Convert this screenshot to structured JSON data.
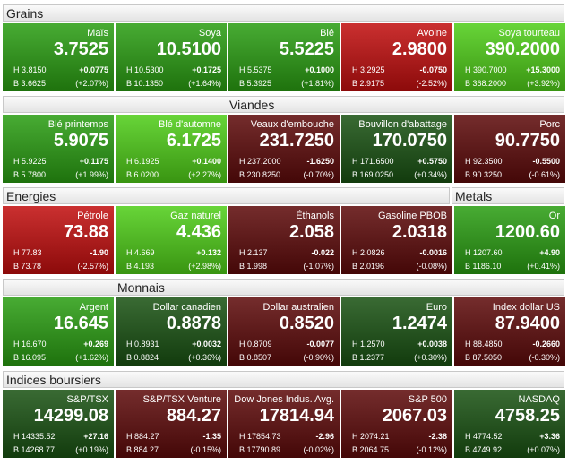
{
  "rows": [
    {
      "headers": [
        "Grains"
      ],
      "tiles": [
        {
          "name": "Maïs",
          "last": "3.7525",
          "high": "H 3.8150",
          "change": "+0.0775",
          "low": "B 3.6625",
          "pct": "(+2.07%)",
          "color": "#2a9e12"
        },
        {
          "name": "Soya",
          "last": "10.5100",
          "high": "H 10.5300",
          "change": "+0.1725",
          "low": "B 10.1350",
          "pct": "(+1.64%)",
          "color": "#2a9e12"
        },
        {
          "name": "Blé",
          "last": "5.5225",
          "high": "H 5.5375",
          "change": "+0.1000",
          "low": "B 5.3925",
          "pct": "(+1.81%)",
          "color": "#2a9e12"
        },
        {
          "name": "Avoine",
          "last": "2.9800",
          "high": "H 3.2925",
          "change": "-0.0750",
          "low": "B 2.9175",
          "pct": "(-2.52%)",
          "color": "#c20e0e"
        },
        {
          "name": "Soya tourteau",
          "last": "390.2000",
          "high": "H 390.7000",
          "change": "+15.3000",
          "low": "B 368.2000",
          "pct": "(+3.92%)",
          "color": "#4fce18"
        }
      ]
    },
    {
      "headers": [
        "Viandes"
      ],
      "tiles": [
        {
          "name": "Blé printemps",
          "last": "5.9075",
          "high": "H 5.9225",
          "change": "+0.1175",
          "low": "B 5.7800",
          "pct": "(+1.99%)",
          "color": "#2a9e12"
        },
        {
          "name": "Blé d'automne",
          "last": "6.1725",
          "high": "H 6.1925",
          "change": "+0.1400",
          "low": "B 6.0200",
          "pct": "(+2.27%)",
          "color": "#4fce18"
        },
        {
          "name": "Veaux d'embouche",
          "last": "231.7250",
          "high": "H 237.2000",
          "change": "-1.6250",
          "low": "B 230.8250",
          "pct": "(-0.70%)",
          "color": "#5e0a0a"
        },
        {
          "name": "Bouvillon d'abattage",
          "last": "170.0750",
          "high": "H 171.6500",
          "change": "+0.5750",
          "low": "B 169.0250",
          "pct": "(+0.34%)",
          "color": "#195212"
        },
        {
          "name": "Porc",
          "last": "90.7750",
          "high": "H 92.3500",
          "change": "-0.5500",
          "low": "B 90.3250",
          "pct": "(-0.61%)",
          "color": "#5e0a0a"
        }
      ]
    },
    {
      "headers": [
        "Energies",
        "Metals"
      ],
      "tiles": [
        {
          "name": "Pétrole",
          "last": "73.88",
          "high": "H 77.83",
          "change": "-1.90",
          "low": "B 73.78",
          "pct": "(-2.57%)",
          "color": "#c20e0e"
        },
        {
          "name": "Gaz naturel",
          "last": "4.436",
          "high": "H 4.669",
          "change": "+0.132",
          "low": "B 4.193",
          "pct": "(+2.98%)",
          "color": "#4fce18"
        },
        {
          "name": "Éthanols",
          "last": "2.058",
          "high": "H 2.137",
          "change": "-0.022",
          "low": "B 1.998",
          "pct": "(-1.07%)",
          "color": "#5e0a0a"
        },
        {
          "name": "Gasoline PBOB",
          "last": "2.0318",
          "high": "H 2.0826",
          "change": "-0.0016",
          "low": "B 2.0196",
          "pct": "(-0.08%)",
          "color": "#5e0a0a"
        },
        {
          "name": "Or",
          "last": "1200.60",
          "high": "H 1207.60",
          "change": "+4.90",
          "low": "B 1186.10",
          "pct": "(+0.41%)",
          "color": "#2a9e12"
        }
      ]
    },
    {
      "headers": [
        "Monnais"
      ],
      "tiles": [
        {
          "name": "Argent",
          "last": "16.645",
          "high": "H 16.670",
          "change": "+0.269",
          "low": "B 16.095",
          "pct": "(+1.62%)",
          "color": "#2a9e12"
        },
        {
          "name": "Dollar canadien",
          "last": "0.8878",
          "high": "H 0.8931",
          "change": "+0.0032",
          "low": "B 0.8824",
          "pct": "(+0.36%)",
          "color": "#195212"
        },
        {
          "name": "Dollar australien",
          "last": "0.8520",
          "high": "H 0.8709",
          "change": "-0.0077",
          "low": "B 0.8507",
          "pct": "(-0.90%)",
          "color": "#5e0a0a"
        },
        {
          "name": "Euro",
          "last": "1.2474",
          "high": "H 1.2570",
          "change": "+0.0038",
          "low": "B 1.2377",
          "pct": "(+0.30%)",
          "color": "#195212"
        },
        {
          "name": "Index dollar US",
          "last": "87.9400",
          "high": "H 88.4850",
          "change": "-0.2660",
          "low": "B 87.5050",
          "pct": "(-0.30%)",
          "color": "#5e0a0a"
        }
      ]
    },
    {
      "headers": [
        "Indices boursiers"
      ],
      "tiles": [
        {
          "name": "S&P/TSX",
          "last": "14299.08",
          "high": "H 14335.52",
          "change": "+27.16",
          "low": "B 14268.77",
          "pct": "(+0.19%)",
          "color": "#195212"
        },
        {
          "name": "S&P/TSX Venture",
          "last": "884.27",
          "high": "H 884.27",
          "change": "-1.35",
          "low": "B 884.27",
          "pct": "(-0.15%)",
          "color": "#5e0a0a"
        },
        {
          "name": "Dow Jones Indus. Avg.",
          "last": "17814.94",
          "high": "H 17854.73",
          "change": "-2.96",
          "low": "B 17790.89",
          "pct": "(-0.02%)",
          "color": "#5e0a0a"
        },
        {
          "name": "S&P 500",
          "last": "2067.03",
          "high": "H 2074.21",
          "change": "-2.38",
          "low": "B 2064.75",
          "pct": "(-0.12%)",
          "color": "#5e0a0a"
        },
        {
          "name": "NASDAQ",
          "last": "4758.25",
          "high": "H 4774.52",
          "change": "+3.36",
          "low": "B 4749.92",
          "pct": "(+0.07%)",
          "color": "#195212"
        }
      ]
    }
  ]
}
